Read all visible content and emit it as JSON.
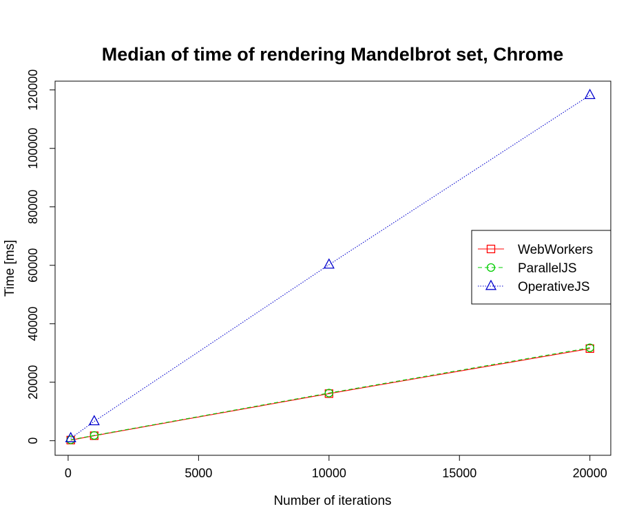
{
  "chart_data": {
    "type": "line",
    "title": "Median of time of rendering Mandelbrot set, Chrome",
    "xlabel": "Number of iterations",
    "ylabel": "Time [ms]",
    "xlim": [
      -500,
      20800
    ],
    "ylim": [
      -5000,
      123000
    ],
    "xticks": [
      0,
      5000,
      10000,
      15000,
      20000
    ],
    "yticks": [
      0,
      20000,
      40000,
      60000,
      80000,
      100000,
      120000
    ],
    "x": [
      100,
      1000,
      10000,
      20000
    ],
    "legend_position": "right",
    "grid": false,
    "series": [
      {
        "name": "WebWorkers",
        "values": [
          200,
          1700,
          16100,
          31500
        ],
        "color": "#ff0000",
        "dash": "",
        "marker": "square"
      },
      {
        "name": "ParallelJS",
        "values": [
          300,
          1800,
          16300,
          31800
        ],
        "color": "#00cd00",
        "dash": "6,4",
        "marker": "circle"
      },
      {
        "name": "OperativeJS",
        "values": [
          800,
          6600,
          60200,
          118200
        ],
        "color": "#0000cd",
        "dash": "1.5,2",
        "marker": "triangle"
      }
    ]
  }
}
